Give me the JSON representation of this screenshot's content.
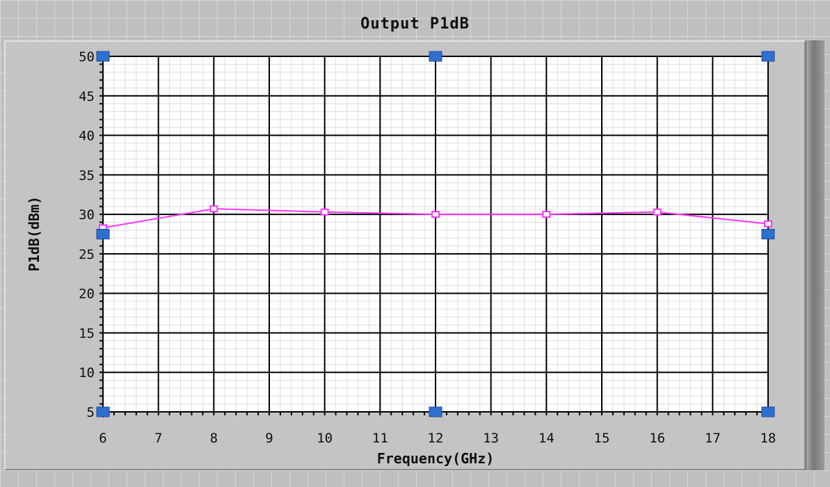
{
  "chart_data": {
    "type": "line",
    "title": "Output P1dB",
    "xlabel": "Frequency(GHz)",
    "ylabel": "P1dB(dBm)",
    "xlim": [
      6,
      18
    ],
    "ylim": [
      5,
      50
    ],
    "x_ticks": [
      "6",
      "7",
      "8",
      "9",
      "10",
      "11",
      "12",
      "13",
      "14",
      "15",
      "16",
      "17",
      "18"
    ],
    "y_ticks": [
      "5",
      "10",
      "15",
      "20",
      "25",
      "30",
      "35",
      "40",
      "45",
      "50"
    ],
    "grid": true,
    "x": [
      6,
      8,
      10,
      12,
      14,
      16,
      18
    ],
    "series": [
      {
        "values": [
          28.3,
          30.7,
          30.3,
          30.0,
          30.0,
          30.3,
          28.8
        ],
        "color": "#ff33ff"
      }
    ],
    "cursor_color": "#2f6fd0",
    "cursor_markers": [
      {
        "x": 6,
        "y": 50
      },
      {
        "x": 12,
        "y": 50
      },
      {
        "x": 18,
        "y": 50
      },
      {
        "x": 6,
        "y": 27.5
      },
      {
        "x": 18,
        "y": 27.5
      },
      {
        "x": 6,
        "y": 5
      },
      {
        "x": 12,
        "y": 5
      },
      {
        "x": 18,
        "y": 5
      }
    ]
  }
}
